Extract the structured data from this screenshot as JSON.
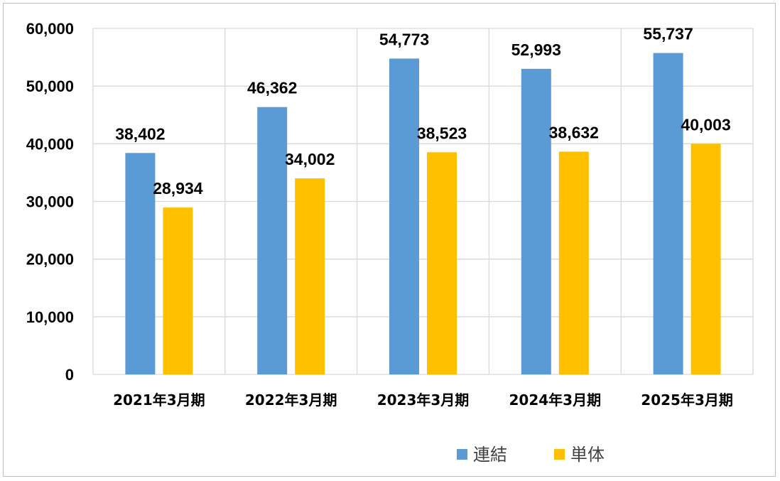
{
  "chart_data": {
    "type": "bar",
    "categories": [
      "2021年3月期",
      "2022年3月期",
      "2023年3月期",
      "2024年3月期",
      "2025年3月期"
    ],
    "series": [
      {
        "name": "連結",
        "color": "#5b9bd5",
        "values": [
          38402,
          46362,
          54773,
          52993,
          55737
        ],
        "labels": [
          "38,402",
          "46,362",
          "54,773",
          "52,993",
          "55,737"
        ]
      },
      {
        "name": "単体",
        "color": "#ffc000",
        "values": [
          28934,
          34002,
          38523,
          38632,
          40003
        ],
        "labels": [
          "28,934",
          "34,002",
          "38,523",
          "38,632",
          "40,003"
        ]
      }
    ],
    "ylim": [
      0,
      60000
    ],
    "yticks": [
      "0",
      "10,000",
      "20,000",
      "30,000",
      "40,000",
      "50,000",
      "60,000"
    ],
    "grid": true,
    "legend_position": "bottom-right",
    "title": "",
    "xlabel": "",
    "ylabel": ""
  }
}
